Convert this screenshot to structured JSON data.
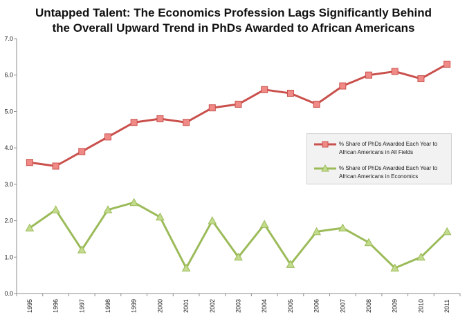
{
  "chart_data": {
    "type": "line",
    "title": "Untapped Talent: The Economics Profession Lags Significantly Behind",
    "subtitle": "the Overall Upward Trend in PhDs Awarded to African Americans",
    "xlabel": "",
    "ylabel": "",
    "categories": [
      "1995",
      "1996",
      "1997",
      "1998",
      "1999",
      "2000",
      "2001",
      "2002",
      "2003",
      "2004",
      "2005",
      "2006",
      "2007",
      "2008",
      "2009",
      "2010",
      "2011"
    ],
    "ylim": [
      0,
      7
    ],
    "yticks": [
      "0.0",
      "1.0",
      "2.0",
      "3.0",
      "4.0",
      "5.0",
      "6.0",
      "7.0"
    ],
    "grid": false,
    "legend_position": "right",
    "series": [
      {
        "name": "% Share of PhDs Awarded Each Year to African Americans in All Fields",
        "color": "#c9504c",
        "marker": "square",
        "values": [
          3.6,
          3.5,
          3.9,
          4.3,
          4.7,
          4.8,
          4.7,
          5.1,
          5.2,
          5.6,
          5.5,
          5.2,
          5.7,
          6.0,
          6.1,
          5.9,
          6.3
        ]
      },
      {
        "name": "% Share of PhDs Awarded Each Year to African Americans in Economics",
        "color": "#9bbb59",
        "marker": "triangle",
        "values": [
          1.8,
          2.3,
          1.2,
          2.3,
          2.5,
          2.1,
          0.7,
          2.0,
          1.0,
          1.9,
          0.8,
          1.7,
          1.8,
          1.4,
          0.7,
          1.0,
          1.7
        ]
      }
    ]
  }
}
